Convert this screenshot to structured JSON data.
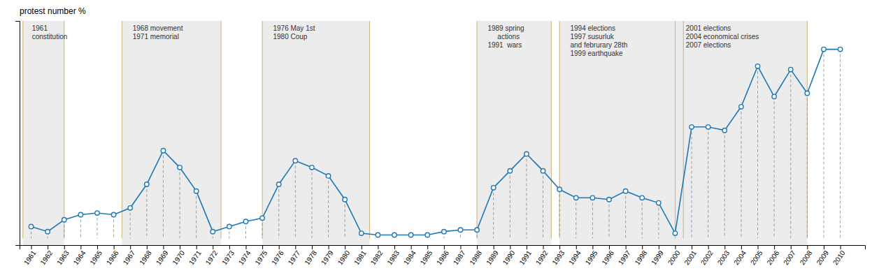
{
  "chart_data": {
    "type": "line",
    "y_label": "protest number %",
    "x": [
      1961,
      1962,
      1963,
      1964,
      1965,
      1966,
      1967,
      1968,
      1969,
      1970,
      1971,
      1972,
      1973,
      1974,
      1975,
      1976,
      1977,
      1978,
      1979,
      1980,
      1981,
      1982,
      1983,
      1984,
      1985,
      1986,
      1987,
      1988,
      1989,
      1990,
      1991,
      1992,
      1993,
      1994,
      1995,
      1996,
      1997,
      1998,
      1999,
      2000,
      2001,
      2002,
      2003,
      2004,
      2005,
      2006,
      2007,
      2008,
      2009,
      2010
    ],
    "values": [
      3.5,
      2.0,
      5.5,
      7.0,
      7.5,
      7.0,
      9.0,
      16.0,
      26.0,
      21.0,
      14.0,
      2.0,
      3.5,
      5.0,
      6.0,
      16.0,
      23.0,
      21.0,
      18.5,
      11.5,
      1.5,
      1.0,
      1.0,
      1.0,
      1.0,
      2.0,
      2.5,
      2.5,
      15.0,
      20.0,
      25.0,
      20.0,
      14.5,
      12.0,
      12.0,
      11.5,
      14.0,
      12.0,
      10.5,
      1.5,
      33.0,
      33.0,
      32.0,
      39.0,
      51.0,
      42.0,
      50.0,
      43.0,
      56.0,
      56.0
    ],
    "marker": "circle",
    "xlim": [
      1960.3,
      2011.5
    ],
    "ylim": [
      -2,
      64.4
    ],
    "xticks": [
      1961,
      1962,
      1963,
      1964,
      1965,
      1966,
      1967,
      1968,
      1969,
      1970,
      1971,
      1972,
      1973,
      1974,
      1975,
      1976,
      1977,
      1978,
      1979,
      1980,
      1981,
      1982,
      1983,
      1984,
      1985,
      1986,
      1987,
      1988,
      1989,
      1990,
      1991,
      1992,
      1993,
      1994,
      1995,
      1996,
      1997,
      1998,
      1999,
      2000,
      2001,
      2002,
      2003,
      2004,
      2005,
      2006,
      2007,
      2008,
      2009,
      2010
    ],
    "tick_labels": "x",
    "grid": false,
    "regions": [
      {
        "x0": 1960.5,
        "x1": 1963
      },
      {
        "x0": 1966.5,
        "x1": 1972.5
      },
      {
        "x0": 1975,
        "x1": 1981.5
      },
      {
        "x0": 1988,
        "x1": 1992.5
      },
      {
        "x0": 1993,
        "x1": 2000.5
      },
      {
        "x0": 2000,
        "x1": 2008
      }
    ],
    "annotations": [
      {
        "x": 1961.05,
        "lines": [
          "1961",
          "constitution"
        ]
      },
      {
        "x": 1967.15,
        "lines": [
          "1968 movement",
          "1971 memorial"
        ]
      },
      {
        "x": 1975.65,
        "lines": [
          "1976 May 1st",
          "1980 Coup"
        ]
      },
      {
        "x": 1988.65,
        "lines": [
          "1989 spring",
          "     actions",
          "1991  wars"
        ]
      },
      {
        "x": 1993.65,
        "lines": [
          "1994 elections",
          "1997 susurluk",
          "and februrary 28th",
          "1999 earthquake"
        ]
      },
      {
        "x": 2000.65,
        "lines": [
          "2001 elections",
          "2004 economical crises",
          "2007 elections"
        ]
      }
    ]
  }
}
